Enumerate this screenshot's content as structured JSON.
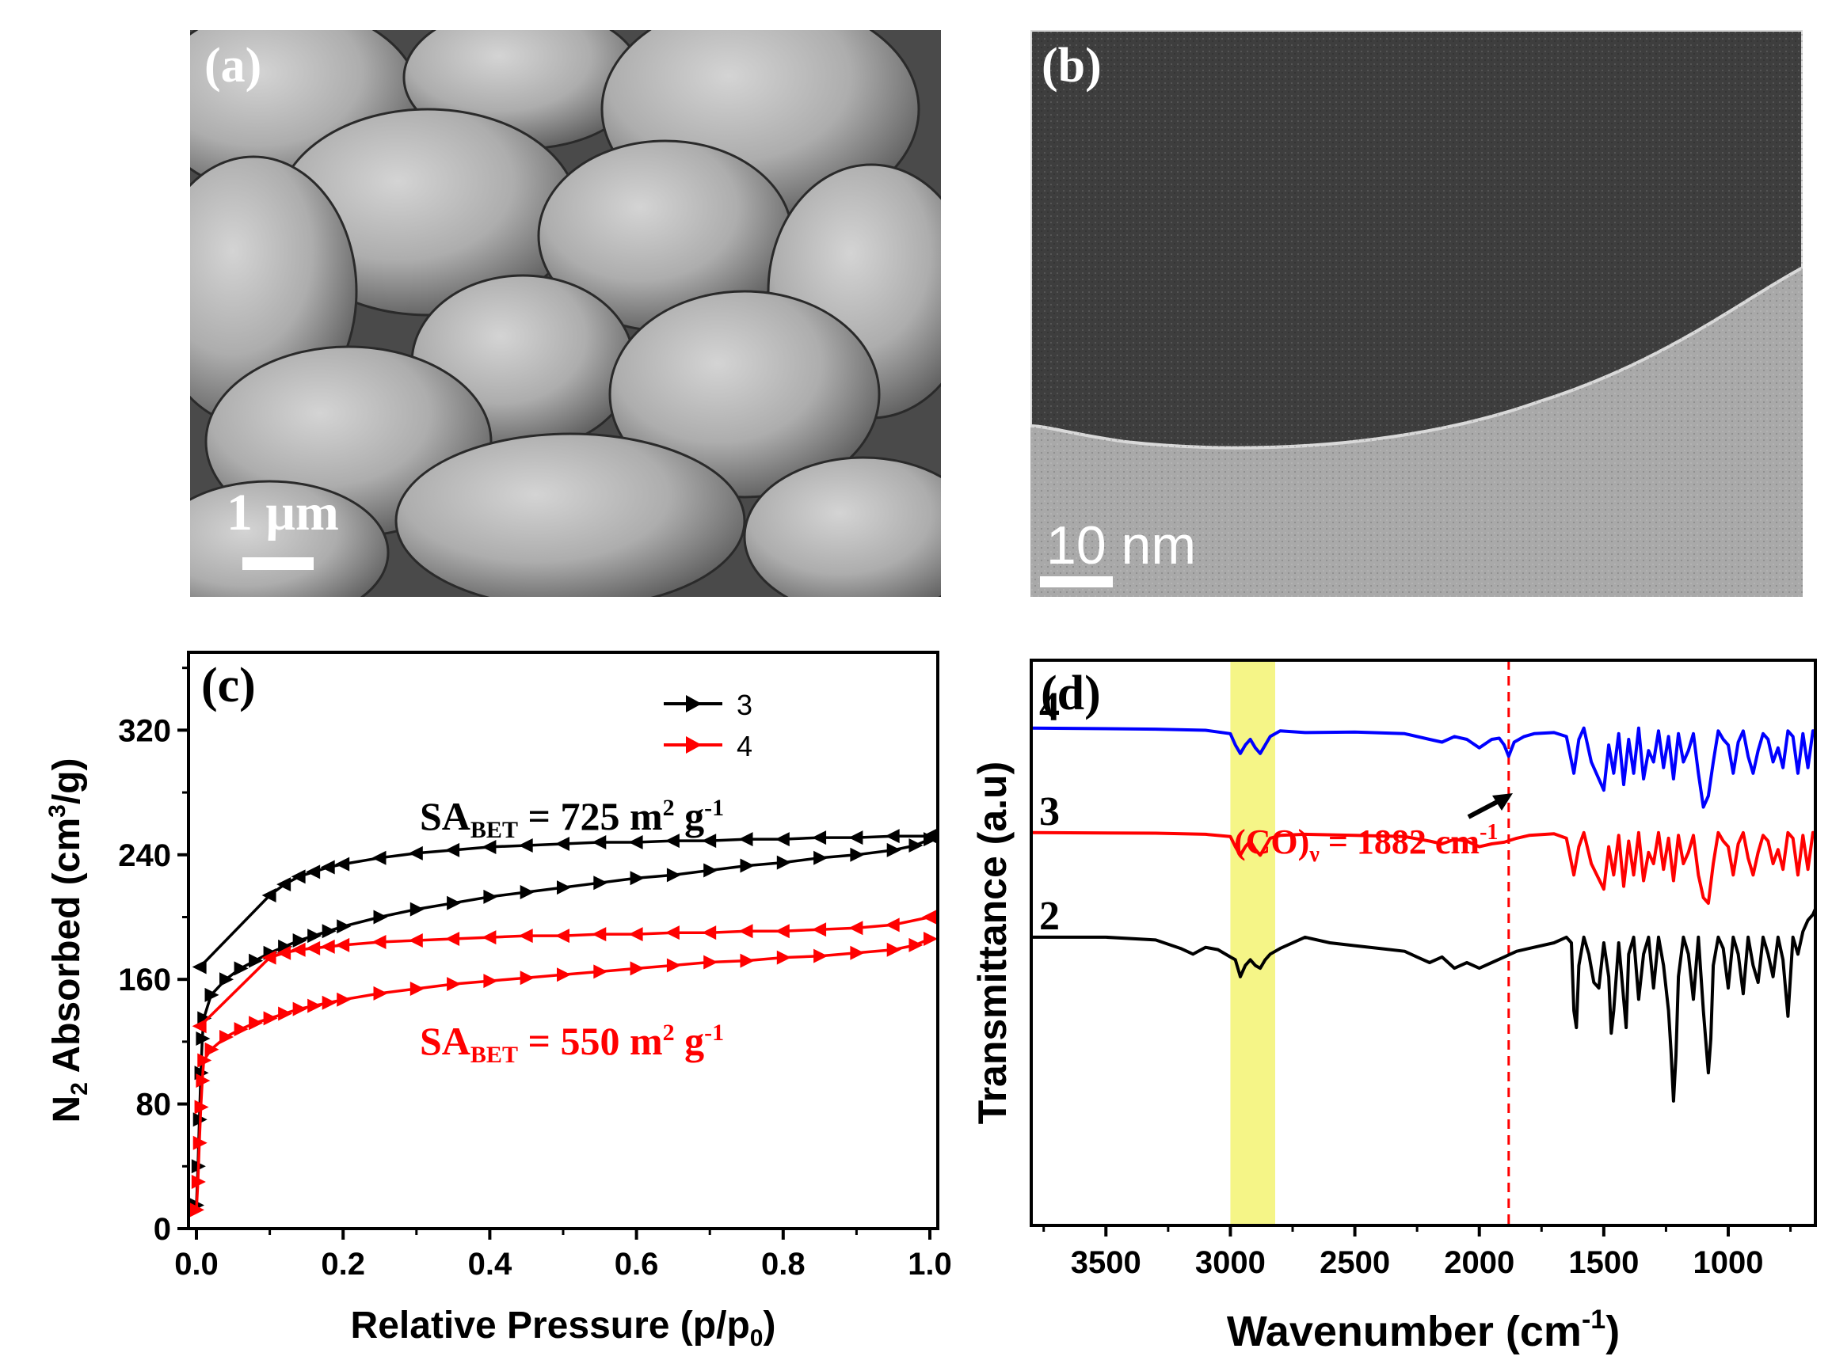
{
  "panel_a": {
    "label": "(a)",
    "scale_bar_text": "1 μm",
    "colors": {
      "background": "#8d8d8d",
      "particle": "#b4b4b4",
      "highlight": "#d8d8d8",
      "shadow": "#3a3a3a"
    }
  },
  "panel_b": {
    "label": "(b)",
    "scale_bar_text": "10 nm",
    "colors": {
      "dark_region": "#404040",
      "light_region": "#a8a8a8"
    }
  },
  "chart_data": [
    {
      "panel": "c",
      "type": "line",
      "panel_label": "(c)",
      "xlabel": "Relative Pressure (p/p",
      "xlabel_sub": "0",
      "xlabel_end": ")",
      "ylabel_main": "N",
      "ylabel_sub": "2",
      "ylabel_rest": " Absorbed (cm",
      "ylabel_sup": "3",
      "ylabel_end": "/g)",
      "xlim": [
        0,
        1.0
      ],
      "ylim": [
        0,
        370
      ],
      "xticks": [
        "0.0",
        "0.2",
        "0.4",
        "0.6",
        "0.8",
        "1.0"
      ],
      "xtick_values": [
        0,
        0.2,
        0.4,
        0.6,
        0.8,
        1.0
      ],
      "yticks": [
        "0",
        "80",
        "160",
        "240",
        "320"
      ],
      "ytick_values": [
        0,
        80,
        160,
        240,
        320
      ],
      "legend": [
        {
          "label": "3",
          "color": "#000000"
        },
        {
          "label": "4",
          "color": "#ff0000"
        }
      ],
      "annotations": [
        {
          "main": "SA",
          "sub": "BET",
          "rest": " = 725 m",
          "sup1": "2",
          "rest2": " g",
          "sup2": "-1",
          "color": "#000000"
        },
        {
          "main": "SA",
          "sub": "BET",
          "rest": " = 550 m",
          "sup1": "2",
          "rest2": " g",
          "sup2": "-1",
          "color": "#ff0000"
        }
      ],
      "series": [
        {
          "name": "3",
          "branch": "adsorption",
          "color": "#000000",
          "marker": "right-triangle",
          "x": [
            0.0,
            0.002,
            0.004,
            0.006,
            0.008,
            0.01,
            0.02,
            0.04,
            0.06,
            0.08,
            0.1,
            0.12,
            0.14,
            0.16,
            0.18,
            0.2,
            0.25,
            0.3,
            0.35,
            0.4,
            0.45,
            0.5,
            0.55,
            0.6,
            0.65,
            0.7,
            0.75,
            0.8,
            0.85,
            0.9,
            0.95,
            0.98,
            1.0
          ],
          "y": [
            15,
            40,
            70,
            100,
            122,
            135,
            150,
            160,
            167,
            172,
            177,
            181,
            185,
            188,
            191,
            194,
            200,
            205,
            209,
            213,
            216,
            219,
            222,
            225,
            227,
            230,
            233,
            235,
            238,
            240,
            243,
            246,
            250
          ]
        },
        {
          "name": "3",
          "branch": "desorption",
          "color": "#000000",
          "marker": "left-triangle",
          "x": [
            1.0,
            0.95,
            0.9,
            0.85,
            0.8,
            0.75,
            0.7,
            0.65,
            0.6,
            0.55,
            0.5,
            0.45,
            0.4,
            0.35,
            0.3,
            0.25,
            0.2,
            0.18,
            0.16,
            0.14,
            0.12,
            0.1,
            0.005
          ],
          "y": [
            252,
            252,
            251,
            251,
            250,
            250,
            249,
            249,
            248,
            248,
            247,
            246,
            245,
            243,
            241,
            238,
            234,
            232,
            229,
            226,
            221,
            214,
            168
          ]
        },
        {
          "name": "4",
          "branch": "adsorption",
          "color": "#ff0000",
          "marker": "right-triangle",
          "x": [
            0.0,
            0.002,
            0.004,
            0.006,
            0.008,
            0.01,
            0.02,
            0.04,
            0.06,
            0.08,
            0.1,
            0.12,
            0.14,
            0.16,
            0.18,
            0.2,
            0.25,
            0.3,
            0.35,
            0.4,
            0.45,
            0.5,
            0.55,
            0.6,
            0.65,
            0.7,
            0.75,
            0.8,
            0.85,
            0.9,
            0.95,
            0.98,
            1.0
          ],
          "y": [
            12,
            30,
            55,
            78,
            95,
            108,
            115,
            123,
            128,
            132,
            135,
            138,
            141,
            143,
            145,
            147,
            151,
            154,
            157,
            159,
            161,
            163,
            165,
            167,
            169,
            171,
            172,
            174,
            175,
            177,
            179,
            182,
            186
          ]
        },
        {
          "name": "4",
          "branch": "desorption",
          "color": "#ff0000",
          "marker": "left-triangle",
          "x": [
            1.0,
            0.95,
            0.9,
            0.85,
            0.8,
            0.75,
            0.7,
            0.65,
            0.6,
            0.55,
            0.5,
            0.45,
            0.4,
            0.35,
            0.3,
            0.25,
            0.2,
            0.18,
            0.16,
            0.14,
            0.12,
            0.1,
            0.005
          ],
          "y": [
            200,
            195,
            193,
            192,
            191,
            191,
            190,
            190,
            189,
            189,
            188,
            188,
            187,
            186,
            185,
            184,
            182,
            181,
            180,
            179,
            177,
            174,
            130
          ]
        }
      ]
    },
    {
      "panel": "d",
      "type": "line",
      "panel_label": "(d)",
      "xlabel": "Wavenumber (cm",
      "xlabel_sup": "-1",
      "xlabel_end": ")",
      "ylabel": "Transmittance (a.u)",
      "xlim": [
        3800,
        650
      ],
      "ylim": [
        0,
        100
      ],
      "xticks": [
        "3500",
        "3000",
        "2500",
        "2000",
        "1500",
        "1000"
      ],
      "xtick_values": [
        3500,
        3000,
        2500,
        2000,
        1500,
        1000
      ],
      "highlight_band": {
        "from": 3000,
        "to": 2820,
        "color": "#f4f47a"
      },
      "reference_line": {
        "x": 1882,
        "color": "#ff0000",
        "style": "dashed"
      },
      "annotation": {
        "main": "(CO)",
        "sub": "ν",
        "rest": " = 1882 cm",
        "sup": "-1",
        "color": "#ff0000"
      },
      "series": [
        {
          "name": "4",
          "color": "#0000ff",
          "x": [
            3800,
            3300,
            3100,
            3000,
            2980,
            2960,
            2940,
            2920,
            2900,
            2880,
            2860,
            2840,
            2800,
            2700,
            2500,
            2300,
            2200,
            2150,
            2100,
            2050,
            2000,
            1950,
            1920,
            1900,
            1882,
            1860,
            1820,
            1780,
            1700,
            1650,
            1620,
            1600,
            1580,
            1550,
            1500,
            1480,
            1460,
            1440,
            1420,
            1400,
            1380,
            1360,
            1340,
            1320,
            1300,
            1280,
            1260,
            1240,
            1220,
            1200,
            1180,
            1160,
            1140,
            1120,
            1100,
            1080,
            1060,
            1040,
            1020,
            1000,
            980,
            960,
            940,
            920,
            900,
            880,
            860,
            840,
            820,
            800,
            780,
            760,
            740,
            720,
            700,
            680,
            660,
            650
          ],
          "y": [
            88,
            87.8,
            87.6,
            87,
            85,
            83.5,
            85,
            86,
            84.5,
            83.5,
            85,
            86.5,
            87.5,
            87.2,
            87.3,
            87,
            86,
            85.5,
            86.5,
            86,
            84.5,
            86,
            86.2,
            85,
            83,
            85.5,
            86.5,
            87,
            87.2,
            86.5,
            80,
            86,
            88,
            82,
            77,
            85,
            80,
            87,
            78,
            86,
            80,
            88,
            79,
            84,
            82,
            87.5,
            81,
            86.5,
            79,
            87,
            82,
            84,
            87,
            80,
            74,
            76,
            82,
            87.5,
            86,
            85,
            80,
            85.5,
            87.5,
            83,
            80,
            84,
            87,
            86,
            82,
            84.5,
            81,
            87.5,
            86.5,
            80,
            87,
            81,
            87.5,
            87.5
          ]
        },
        {
          "name": "3",
          "color": "#ff0000",
          "x": [
            3800,
            3300,
            3100,
            3000,
            2980,
            2960,
            2940,
            2920,
            2900,
            2880,
            2860,
            2840,
            2800,
            2700,
            2500,
            2300,
            2200,
            2150,
            2100,
            2050,
            2000,
            1950,
            1900,
            1850,
            1800,
            1700,
            1650,
            1620,
            1600,
            1580,
            1550,
            1500,
            1480,
            1460,
            1440,
            1420,
            1400,
            1380,
            1360,
            1340,
            1320,
            1300,
            1280,
            1260,
            1240,
            1220,
            1200,
            1180,
            1160,
            1140,
            1120,
            1100,
            1080,
            1060,
            1040,
            1020,
            1000,
            980,
            960,
            940,
            920,
            900,
            880,
            860,
            840,
            820,
            800,
            780,
            760,
            740,
            720,
            700,
            680,
            660,
            650
          ],
          "y": [
            69.5,
            69.4,
            69.2,
            68.8,
            67,
            65.5,
            67,
            68,
            66.5,
            65.5,
            67,
            68.5,
            69,
            69.2,
            69,
            68.8,
            68,
            67.5,
            68.3,
            68,
            67,
            67.5,
            67.8,
            68.5,
            69,
            69.3,
            68.5,
            62,
            67,
            69.5,
            64,
            59.5,
            67,
            62,
            69,
            60,
            68,
            62,
            69.5,
            61,
            66,
            64,
            69.5,
            63,
            68.5,
            61,
            69,
            64,
            66,
            69,
            62,
            58,
            57,
            64,
            69.5,
            68,
            67,
            62,
            67.5,
            69.5,
            65,
            62,
            66,
            69,
            68,
            64,
            66.5,
            63,
            69.5,
            68.5,
            62,
            69,
            63,
            69.5,
            69.5
          ]
        },
        {
          "name": "2",
          "color": "#000000",
          "x": [
            3800,
            3500,
            3300,
            3200,
            3150,
            3100,
            3050,
            3000,
            2980,
            2960,
            2940,
            2920,
            2900,
            2880,
            2860,
            2840,
            2800,
            2700,
            2600,
            2500,
            2400,
            2300,
            2250,
            2200,
            2150,
            2100,
            2050,
            2000,
            1950,
            1900,
            1850,
            1800,
            1700,
            1650,
            1630,
            1620,
            1610,
            1600,
            1580,
            1560,
            1540,
            1520,
            1500,
            1480,
            1470,
            1460,
            1440,
            1420,
            1410,
            1400,
            1380,
            1360,
            1340,
            1320,
            1300,
            1280,
            1260,
            1240,
            1230,
            1220,
            1210,
            1200,
            1180,
            1160,
            1140,
            1120,
            1100,
            1080,
            1070,
            1060,
            1040,
            1020,
            1000,
            980,
            960,
            940,
            920,
            900,
            880,
            860,
            840,
            820,
            800,
            780,
            760,
            740,
            720,
            700,
            680,
            660,
            650
          ],
          "y": [
            51,
            51,
            50.5,
            49,
            48,
            49.2,
            48.8,
            47.5,
            47,
            44,
            46,
            47,
            46,
            45.5,
            47,
            48,
            49,
            51,
            50,
            49.5,
            49,
            48.5,
            47.5,
            46.5,
            47.5,
            45.5,
            46.5,
            45.5,
            46.5,
            47.5,
            48.5,
            49,
            50,
            51,
            50,
            38,
            35,
            46,
            51,
            48,
            43,
            42,
            50,
            44,
            34,
            38,
            50,
            40,
            35,
            48,
            51,
            40,
            48,
            51,
            42,
            51,
            46,
            38,
            31,
            22,
            30,
            44,
            51,
            48,
            40,
            51,
            38,
            27,
            33,
            46,
            51,
            49,
            42,
            51,
            48,
            41,
            51,
            46,
            43,
            51,
            48,
            44,
            51,
            47,
            37,
            51,
            48,
            52,
            54,
            55,
            56
          ]
        }
      ],
      "trace_labels": [
        {
          "label": "4",
          "y": 88
        },
        {
          "label": "3",
          "y": 69.5
        },
        {
          "label": "2",
          "y": 51
        }
      ]
    }
  ]
}
